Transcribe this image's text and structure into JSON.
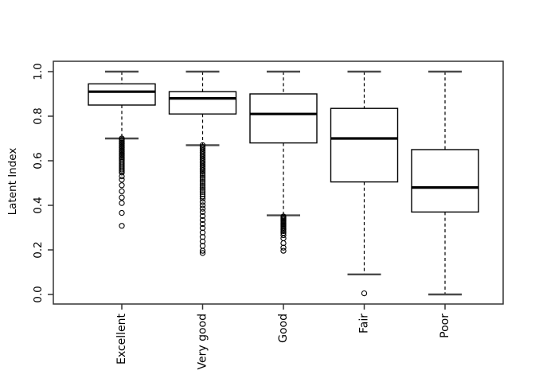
{
  "page": {
    "background": "#ffffff"
  },
  "colors": {
    "background": "#ffffff",
    "frame": "#333333",
    "box_stroke": "#000000",
    "median": "#000000",
    "whisker": "#000000",
    "cap": "#4a4a4a",
    "outlier_stroke": "#000000",
    "text": "#000000"
  },
  "chart_data": {
    "type": "boxplot",
    "title": "",
    "xlabel": "",
    "ylabel": "Latent Index",
    "ylim": [
      0.0,
      1.0
    ],
    "yticks": [
      0.0,
      0.2,
      0.4,
      0.6,
      0.8,
      1.0
    ],
    "ytick_labels": [
      "0.0",
      "0.2",
      "0.4",
      "0.6",
      "0.8",
      "1.0"
    ],
    "grid": false,
    "categories": [
      "Excellent",
      "Very good",
      "Good",
      "Fair",
      "Poor"
    ],
    "boxes": [
      {
        "category": "Excellent",
        "whisker_low": 0.7,
        "q1": 0.85,
        "median": 0.91,
        "q3": 0.945,
        "whisker_high": 1.0,
        "outliers": [
          0.7,
          0.694,
          0.688,
          0.682,
          0.676,
          0.67,
          0.664,
          0.658,
          0.652,
          0.646,
          0.64,
          0.634,
          0.628,
          0.622,
          0.616,
          0.61,
          0.603,
          0.596,
          0.589,
          0.582,
          0.575,
          0.568,
          0.561,
          0.554,
          0.547,
          0.53,
          0.515,
          0.49,
          0.463,
          0.435,
          0.41,
          0.366,
          0.308
        ]
      },
      {
        "category": "Very good",
        "whisker_low": 0.67,
        "q1": 0.81,
        "median": 0.88,
        "q3": 0.91,
        "whisker_high": 1.0,
        "outliers": [
          0.67,
          0.662,
          0.654,
          0.646,
          0.638,
          0.63,
          0.622,
          0.614,
          0.606,
          0.598,
          0.59,
          0.582,
          0.574,
          0.566,
          0.558,
          0.55,
          0.541,
          0.532,
          0.523,
          0.514,
          0.505,
          0.496,
          0.487,
          0.478,
          0.469,
          0.46,
          0.45,
          0.44,
          0.43,
          0.415,
          0.4,
          0.385,
          0.37,
          0.352,
          0.334,
          0.316,
          0.298,
          0.278,
          0.258,
          0.238,
          0.218,
          0.196,
          0.186
        ]
      },
      {
        "category": "Good",
        "whisker_low": 0.355,
        "q1": 0.68,
        "median": 0.81,
        "q3": 0.9,
        "whisker_high": 1.0,
        "outliers": [
          0.35,
          0.345,
          0.34,
          0.335,
          0.33,
          0.325,
          0.32,
          0.315,
          0.31,
          0.305,
          0.3,
          0.295,
          0.29,
          0.284,
          0.276,
          0.266,
          0.252,
          0.23,
          0.21,
          0.196
        ]
      },
      {
        "category": "Fair",
        "whisker_low": 0.09,
        "q1": 0.505,
        "median": 0.7,
        "q3": 0.835,
        "whisker_high": 1.0,
        "outliers": [
          0.005
        ]
      },
      {
        "category": "Poor",
        "whisker_low": 0.0,
        "q1": 0.37,
        "median": 0.48,
        "q3": 0.65,
        "whisker_high": 1.0,
        "outliers": []
      }
    ]
  }
}
